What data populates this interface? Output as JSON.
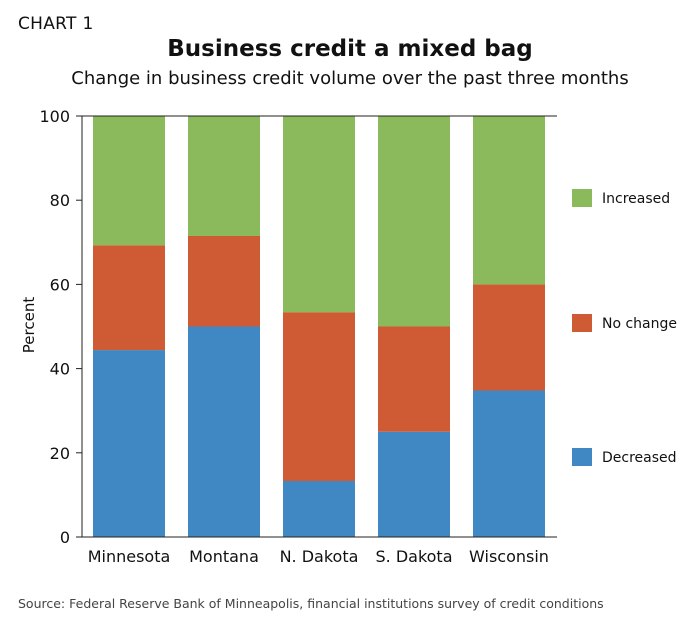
{
  "header": {
    "chart_label": "CHART 1"
  },
  "footer": {
    "source": "Source: Federal Reserve Bank of Minneapolis, financial institutions survey of credit conditions"
  },
  "colors": {
    "decreased": "#4088c4",
    "no_change": "#cf5b35",
    "increased": "#8aba5c",
    "axis": "#222222",
    "grid": "#dddddd"
  },
  "chart_data": {
    "type": "bar",
    "stacked": true,
    "title": "Business credit a mixed bag",
    "subtitle": "Change in business credit volume over the past three months",
    "xlabel": "",
    "ylabel": "Percent",
    "ylim": [
      0,
      100
    ],
    "yticks": [
      0,
      20,
      40,
      60,
      80,
      100
    ],
    "categories": [
      "Minnesota",
      "Montana",
      "N. Dakota",
      "S. Dakota",
      "Wisconsin"
    ],
    "series": [
      {
        "name": "Decreased",
        "color": "#4088c4",
        "values": [
          44.4,
          50,
          13.3,
          25,
          34.8
        ]
      },
      {
        "name": "No change",
        "color": "#cf5b35",
        "values": [
          24.9,
          21.5,
          40.1,
          25,
          25.2
        ]
      },
      {
        "name": "Increased",
        "color": "#8aba5c",
        "values": [
          30.7,
          28.5,
          46.6,
          50,
          40
        ]
      }
    ],
    "legend": {
      "placement": "right",
      "order": [
        "Increased",
        "No change",
        "Decreased"
      ]
    },
    "grid": false
  }
}
